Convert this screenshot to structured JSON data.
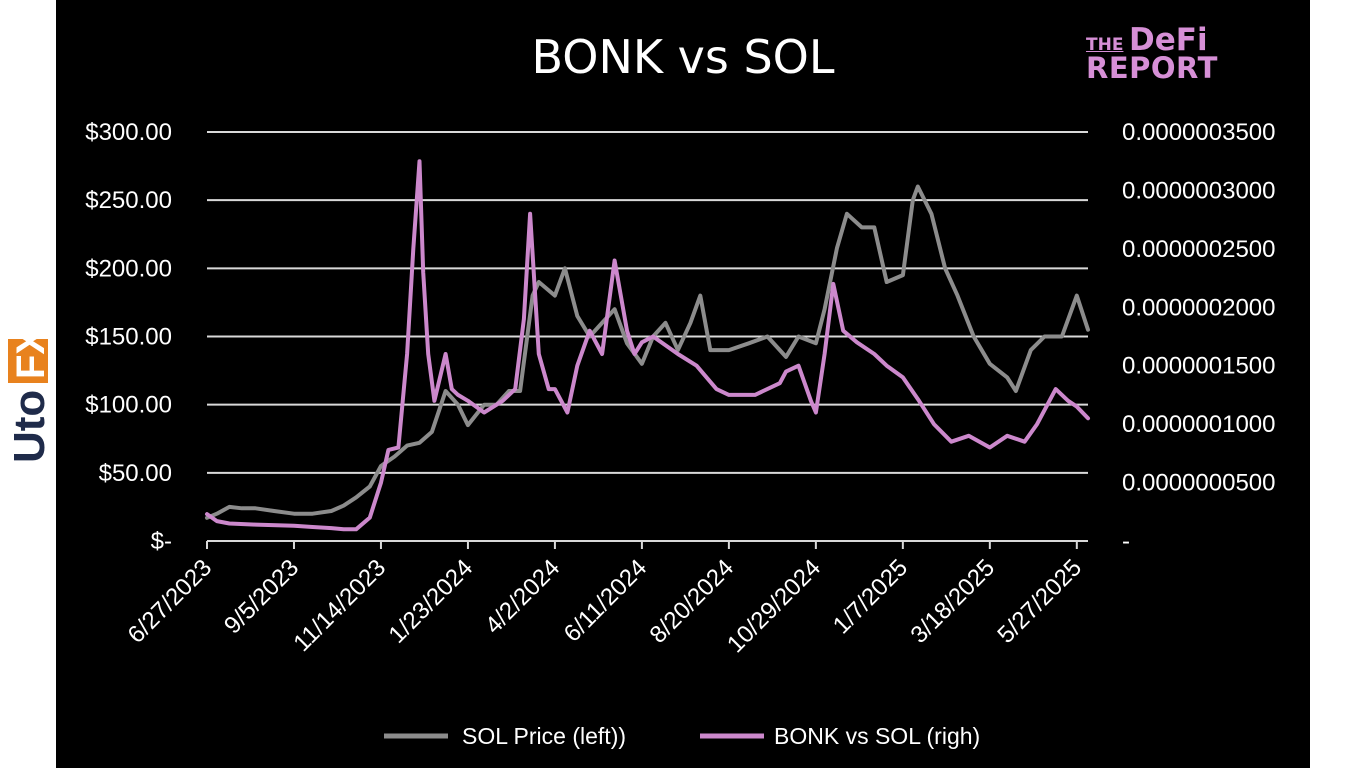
{
  "brand": {
    "the": "THE",
    "defi": "DeFi",
    "report": "REPORT"
  },
  "watermark": {
    "text": "UtoFX"
  },
  "chart_data": {
    "type": "line",
    "title": "BONK vs SOL",
    "colors": {
      "background": "#000000",
      "grid": "#d9d9d9",
      "sol": "#8c8c8c",
      "bonk": "#cc88cc",
      "text": "#ffffff"
    },
    "grid": true,
    "legend_position": "bottom",
    "x_axis": {
      "type": "date",
      "range": [
        "2023-06-27",
        "2025-06-05"
      ],
      "tick_labels": [
        "6/27/2023",
        "9/5/2023",
        "11/14/2023",
        "1/23/2024",
        "4/2/2024",
        "6/11/2024",
        "8/20/2024",
        "10/29/2024",
        "1/7/2025",
        "3/18/2025",
        "5/27/2025"
      ],
      "tick_dates": [
        "2023-06-27",
        "2023-09-05",
        "2023-11-14",
        "2024-01-23",
        "2024-04-02",
        "2024-06-11",
        "2024-08-20",
        "2024-10-29",
        "2025-01-07",
        "2025-03-18",
        "2025-05-27"
      ]
    },
    "y_left": {
      "range": [
        0,
        300
      ],
      "ticks": [
        0,
        50,
        100,
        150,
        200,
        250,
        300
      ],
      "tick_labels": [
        "$-",
        "$50.00",
        "$100.00",
        "$150.00",
        "$200.00",
        "$250.00",
        "$300.00"
      ]
    },
    "y_right": {
      "range": [
        0,
        3.5e-07
      ],
      "ticks": [
        0,
        5e-08,
        1e-07,
        1.5e-07,
        2e-07,
        2.5e-07,
        3e-07,
        3.5e-07
      ],
      "tick_labels": [
        "-",
        "0.0000000500",
        "0.0000001000",
        "0.0000001500",
        "0.0000002000",
        "0.0000002500",
        "0.0000003000",
        "0.0000003500"
      ]
    },
    "series": [
      {
        "name": "SOL Price (left))",
        "axis": "left",
        "x": [
          "2023-06-27",
          "2023-07-05",
          "2023-07-15",
          "2023-07-25",
          "2023-08-05",
          "2023-08-20",
          "2023-09-05",
          "2023-09-20",
          "2023-10-05",
          "2023-10-15",
          "2023-10-25",
          "2023-11-05",
          "2023-11-14",
          "2023-11-25",
          "2023-12-05",
          "2023-12-15",
          "2023-12-25",
          "2024-01-05",
          "2024-01-15",
          "2024-01-23",
          "2024-02-05",
          "2024-02-15",
          "2024-02-25",
          "2024-03-05",
          "2024-03-15",
          "2024-03-20",
          "2024-04-02",
          "2024-04-10",
          "2024-04-20",
          "2024-04-30",
          "2024-05-10",
          "2024-05-20",
          "2024-05-30",
          "2024-06-11",
          "2024-06-20",
          "2024-06-30",
          "2024-07-10",
          "2024-07-20",
          "2024-07-28",
          "2024-08-05",
          "2024-08-20",
          "2024-09-05",
          "2024-09-20",
          "2024-10-05",
          "2024-10-15",
          "2024-10-29",
          "2024-11-05",
          "2024-11-15",
          "2024-11-23",
          "2024-12-05",
          "2024-12-15",
          "2024-12-25",
          "2025-01-07",
          "2025-01-15",
          "2025-01-19",
          "2025-01-30",
          "2025-02-10",
          "2025-02-20",
          "2025-03-05",
          "2025-03-18",
          "2025-04-01",
          "2025-04-08",
          "2025-04-20",
          "2025-05-01",
          "2025-05-15",
          "2025-05-27",
          "2025-06-05"
        ],
        "values": [
          17,
          20,
          25,
          24,
          24,
          22,
          20,
          20,
          22,
          26,
          32,
          40,
          55,
          62,
          70,
          72,
          80,
          110,
          100,
          85,
          100,
          100,
          110,
          110,
          180,
          190,
          180,
          200,
          165,
          150,
          160,
          170,
          145,
          130,
          150,
          160,
          140,
          160,
          180,
          140,
          140,
          145,
          150,
          135,
          150,
          145,
          170,
          215,
          240,
          230,
          230,
          190,
          195,
          250,
          260,
          240,
          200,
          180,
          150,
          130,
          120,
          110,
          140,
          150,
          150,
          180,
          155
        ]
      },
      {
        "name": "BONK vs SOL (righ)",
        "axis": "right",
        "x": [
          "2023-06-27",
          "2023-07-05",
          "2023-07-15",
          "2023-08-05",
          "2023-09-05",
          "2023-09-20",
          "2023-10-05",
          "2023-10-15",
          "2023-10-25",
          "2023-11-05",
          "2023-11-14",
          "2023-11-20",
          "2023-11-28",
          "2023-12-05",
          "2023-12-10",
          "2023-12-15",
          "2023-12-18",
          "2023-12-22",
          "2023-12-27",
          "2024-01-05",
          "2024-01-10",
          "2024-01-15",
          "2024-01-23",
          "2024-02-05",
          "2024-02-20",
          "2024-03-01",
          "2024-03-08",
          "2024-03-13",
          "2024-03-20",
          "2024-03-28",
          "2024-04-02",
          "2024-04-12",
          "2024-04-20",
          "2024-04-30",
          "2024-05-10",
          "2024-05-20",
          "2024-05-30",
          "2024-06-05",
          "2024-06-11",
          "2024-06-20",
          "2024-07-10",
          "2024-07-25",
          "2024-08-10",
          "2024-08-20",
          "2024-09-10",
          "2024-09-30",
          "2024-10-05",
          "2024-10-15",
          "2024-10-25",
          "2024-10-29",
          "2024-11-05",
          "2024-11-12",
          "2024-11-20",
          "2024-12-01",
          "2024-12-15",
          "2024-12-25",
          "2025-01-07",
          "2025-01-20",
          "2025-02-01",
          "2025-02-15",
          "2025-03-01",
          "2025-03-18",
          "2025-04-01",
          "2025-04-15",
          "2025-04-25",
          "2025-05-10",
          "2025-05-20",
          "2025-05-27",
          "2025-06-05"
        ],
        "values": [
          2.3e-08,
          1.7e-08,
          1.5e-08,
          1.4e-08,
          1.3e-08,
          1.2e-08,
          1.1e-08,
          1e-08,
          1e-08,
          2e-08,
          5e-08,
          7.8e-08,
          8e-08,
          1.6e-07,
          2.5e-07,
          3.25e-07,
          2.3e-07,
          1.6e-07,
          1.2e-07,
          1.6e-07,
          1.3e-07,
          1.25e-07,
          1.2e-07,
          1.1e-07,
          1.2e-07,
          1.3e-07,
          1.9e-07,
          2.8e-07,
          1.6e-07,
          1.3e-07,
          1.3e-07,
          1.1e-07,
          1.5e-07,
          1.8e-07,
          1.6e-07,
          2.4e-07,
          1.8e-07,
          1.6e-07,
          1.7e-07,
          1.75e-07,
          1.6e-07,
          1.5e-07,
          1.3e-07,
          1.25e-07,
          1.25e-07,
          1.35e-07,
          1.45e-07,
          1.5e-07,
          1.2e-07,
          1.1e-07,
          1.6e-07,
          2.2e-07,
          1.8e-07,
          1.7e-07,
          1.6e-07,
          1.5e-07,
          1.4e-07,
          1.2e-07,
          1e-07,
          8.5e-08,
          9e-08,
          8e-08,
          9e-08,
          8.5e-08,
          1e-07,
          1.3e-07,
          1.2e-07,
          1.15e-07,
          1.05e-07
        ]
      }
    ]
  }
}
